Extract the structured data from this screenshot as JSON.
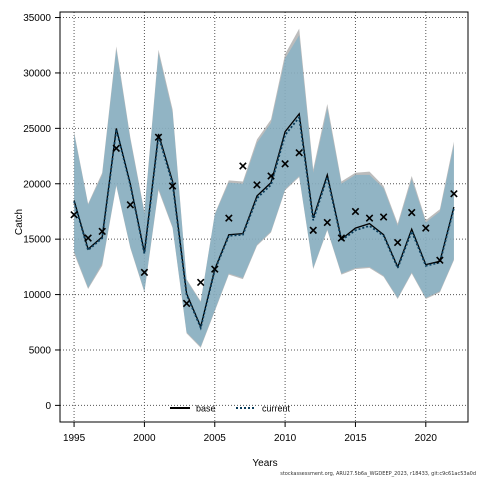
{
  "chart_data": {
    "type": "line",
    "xlabel": "Years",
    "ylabel": "Catch",
    "xlim": [
      1994.0,
      2023.0
    ],
    "ylim": [
      -1500,
      35500
    ],
    "xticks": [
      1995,
      2000,
      2005,
      2010,
      2015,
      2020
    ],
    "yticks": [
      0,
      5000,
      10000,
      15000,
      20000,
      25000,
      30000,
      35000
    ],
    "grid": true,
    "legend_position": "bottom-center",
    "x": [
      1995,
      1996,
      1997,
      1998,
      1999,
      2000,
      2001,
      2002,
      2003,
      2004,
      2005,
      2006,
      2007,
      2008,
      2009,
      2010,
      2011,
      2012,
      2013,
      2014,
      2015,
      2016,
      2017,
      2018,
      2019,
      2020,
      2021,
      2022
    ],
    "observed": {
      "marker": "x",
      "values": [
        17200,
        15100,
        15700,
        23200,
        18100,
        12000,
        24200,
        19800,
        9200,
        11100,
        12300,
        16900,
        21600,
        19900,
        20700,
        21800,
        22800,
        15800,
        16500,
        15100,
        17500,
        16900,
        17000,
        14700,
        17400,
        16000,
        13100,
        19100
      ]
    },
    "bands": [
      {
        "series": "base",
        "color": "#a0a0a0",
        "upper": [
          24700,
          18200,
          21000,
          32400,
          24200,
          17500,
          32100,
          26700,
          11400,
          9400,
          17300,
          20300,
          20200,
          24000,
          25800,
          31700,
          34000,
          21300,
          27200,
          20200,
          21000,
          21100,
          19800,
          16400,
          20700,
          16700,
          17700,
          23800
        ],
        "lower": [
          13700,
          10500,
          12600,
          19800,
          14200,
          10200,
          19400,
          16000,
          6500,
          5200,
          8500,
          11800,
          11400,
          14400,
          15600,
          19400,
          20600,
          12300,
          15800,
          11800,
          12300,
          12400,
          11600,
          9600,
          11900,
          9600,
          10200,
          13100
        ]
      },
      {
        "series": "current",
        "color": "#7fb0c8",
        "upper": [
          24500,
          18100,
          20800,
          32100,
          24000,
          17300,
          31800,
          26400,
          11300,
          9300,
          17200,
          20100,
          20000,
          23700,
          25500,
          31300,
          33400,
          21000,
          26800,
          20000,
          20800,
          20800,
          19600,
          16200,
          20400,
          16500,
          17500,
          23500
        ],
        "lower": [
          13900,
          10600,
          12800,
          19900,
          14300,
          10300,
          19600,
          16100,
          6600,
          5300,
          8600,
          11900,
          11500,
          14500,
          15700,
          19500,
          20700,
          12400,
          15900,
          11900,
          12400,
          12500,
          11700,
          9700,
          12000,
          9700,
          10300,
          13200
        ]
      }
    ],
    "series": [
      {
        "name": "base",
        "style": "solid",
        "color": "#000000",
        "values": [
          18500,
          14100,
          15200,
          25000,
          20000,
          13800,
          24500,
          20200,
          10100,
          7100,
          12300,
          15400,
          15500,
          18900,
          20100,
          24700,
          26300,
          16900,
          20800,
          15000,
          16000,
          16400,
          15400,
          12500,
          15900,
          12700,
          13000,
          17900
        ]
      },
      {
        "name": "current",
        "style": "dotted",
        "color": "#0a3d5c",
        "values": [
          18400,
          14000,
          15100,
          24900,
          19900,
          13700,
          24300,
          20000,
          10000,
          7000,
          12200,
          15300,
          15400,
          18700,
          19900,
          24400,
          26000,
          16700,
          20600,
          14900,
          15800,
          16200,
          15300,
          12400,
          15700,
          12600,
          12900,
          17800
        ]
      }
    ]
  },
  "footer": {
    "text": "stockassessment.org, ARU27.5b6a_WGDEEP_2023, r18433, git:c9c61ac53a0d"
  }
}
